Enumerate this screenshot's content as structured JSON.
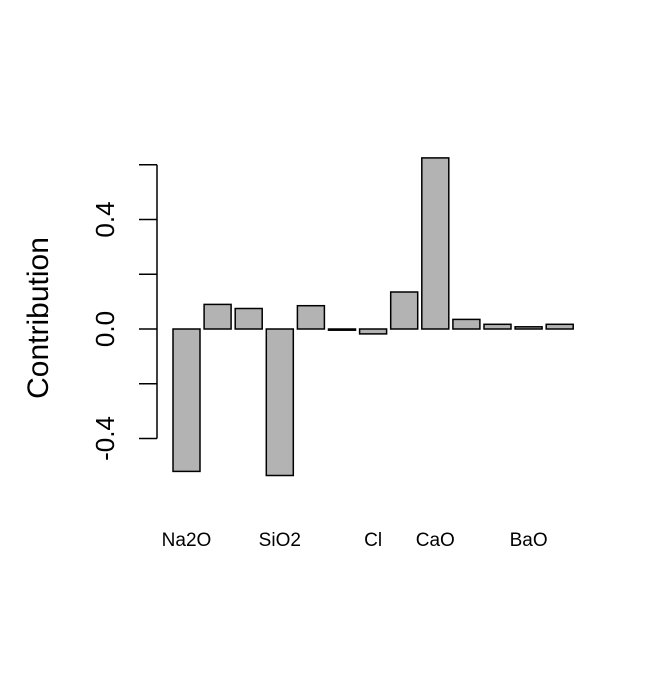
{
  "chart_data": {
    "type": "bar",
    "title": "",
    "xlabel": "",
    "ylabel": "Contribution",
    "ylim": [
      -0.5,
      0.6
    ],
    "yticks": [
      -0.4,
      -0.2,
      0.0,
      0.2,
      0.4,
      0.6
    ],
    "ytick_labels": [
      "-0.4",
      "",
      "0.0",
      "",
      "0.4",
      ""
    ],
    "grid": false,
    "legend": "none",
    "bar_color": "#b3b3b3",
    "bar_edge_color": "#000000",
    "bars": [
      {
        "label": "Na2O",
        "value": -0.52
      },
      {
        "label": "",
        "value": 0.09
      },
      {
        "label": "",
        "value": 0.075
      },
      {
        "label": "SiO2",
        "value": -0.535
      },
      {
        "label": "",
        "value": 0.085
      },
      {
        "label": "",
        "value": -0.003
      },
      {
        "label": "Cl",
        "value": -0.018
      },
      {
        "label": "",
        "value": 0.135
      },
      {
        "label": "CaO",
        "value": 0.625
      },
      {
        "label": "",
        "value": 0.035
      },
      {
        "label": "",
        "value": 0.017
      },
      {
        "label": "BaO",
        "value": 0.008
      },
      {
        "label": "",
        "value": 0.017
      }
    ]
  }
}
